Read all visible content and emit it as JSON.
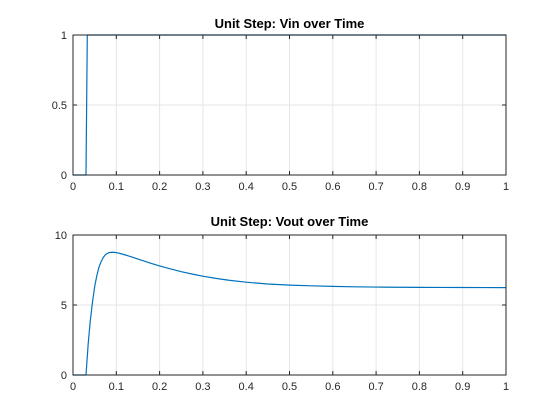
{
  "chart_data": [
    {
      "type": "line",
      "title": "Unit Step: Vin over Time",
      "xlabel": "",
      "ylabel": "",
      "xlim": [
        0,
        1
      ],
      "ylim": [
        0,
        1
      ],
      "xticks": [
        0,
        0.1,
        0.2,
        0.3,
        0.4,
        0.5,
        0.6,
        0.7,
        0.8,
        0.9,
        1
      ],
      "xtick_labels": [
        "0",
        "0.1",
        "0.2",
        "0.3",
        "0.4",
        "0.5",
        "0.6",
        "0.7",
        "0.8",
        "0.9",
        "1"
      ],
      "yticks": [
        0,
        0.5,
        1
      ],
      "ytick_labels": [
        "0",
        "0.5",
        "1"
      ],
      "grid": true,
      "line_color": "#0072BD",
      "series": [
        {
          "x": [
            0,
            0.03,
            0.033,
            1
          ],
          "y": [
            0,
            0,
            1,
            1
          ]
        }
      ]
    },
    {
      "type": "line",
      "title": "Unit Step: Vout over Time",
      "xlabel": "",
      "ylabel": "",
      "xlim": [
        0,
        1
      ],
      "ylim": [
        0,
        10
      ],
      "xticks": [
        0,
        0.1,
        0.2,
        0.3,
        0.4,
        0.5,
        0.6,
        0.7,
        0.8,
        0.9,
        1
      ],
      "xtick_labels": [
        "0",
        "0.1",
        "0.2",
        "0.3",
        "0.4",
        "0.5",
        "0.6",
        "0.7",
        "0.8",
        "0.9",
        "1"
      ],
      "yticks": [
        0,
        5,
        10
      ],
      "ytick_labels": [
        "0",
        "5",
        "10"
      ],
      "grid": true,
      "line_color": "#0072BD",
      "series": [
        {
          "x": [
            0,
            0.03,
            0.035,
            0.04,
            0.045,
            0.05,
            0.055,
            0.06,
            0.065,
            0.07,
            0.075,
            0.08,
            0.085,
            0.09,
            0.095,
            0.1,
            0.105,
            0.11,
            0.12,
            0.13,
            0.14,
            0.15,
            0.16,
            0.18,
            0.2,
            0.22,
            0.25,
            0.28,
            0.3,
            0.33,
            0.36,
            0.4,
            0.45,
            0.5,
            0.55,
            0.6,
            0.65,
            0.7,
            0.75,
            0.8,
            0.85,
            0.9,
            0.95,
            1.0
          ],
          "y": [
            0,
            0,
            2.2,
            3.9,
            5.2,
            6.3,
            7.1,
            7.7,
            8.1,
            8.4,
            8.6,
            8.7,
            8.75,
            8.77,
            8.76,
            8.74,
            8.71,
            8.67,
            8.58,
            8.49,
            8.39,
            8.28,
            8.18,
            7.98,
            7.79,
            7.62,
            7.38,
            7.18,
            7.06,
            6.9,
            6.77,
            6.63,
            6.5,
            6.42,
            6.37,
            6.33,
            6.3,
            6.28,
            6.27,
            6.26,
            6.255,
            6.25,
            6.245,
            6.24
          ]
        }
      ]
    }
  ]
}
